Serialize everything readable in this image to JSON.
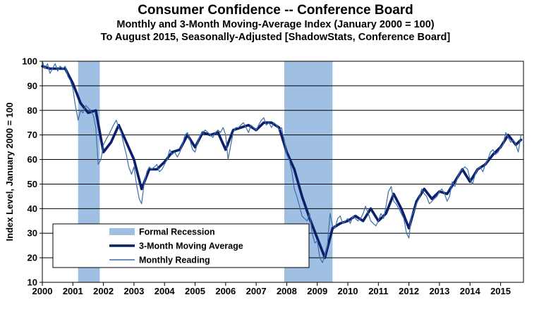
{
  "title": "Consumer Confidence -- Conference Board",
  "subtitle1": "Monthly and 3-Month Moving-Average Index (January 2000 = 100)",
  "subtitle2": "To August 2015, Seasonally-Adjusted [ShadowStats, Conference Board]",
  "chart_data": {
    "type": "line",
    "ylabel": "Index Level, January 2000 = 100",
    "xlabel": "",
    "ylim": [
      10,
      100
    ],
    "yticks": [
      10,
      20,
      30,
      40,
      50,
      60,
      70,
      80,
      90,
      100
    ],
    "xlim": [
      2000.0,
      2015.75
    ],
    "xticks": [
      "2000",
      "2001",
      "2002",
      "2003",
      "2004",
      "2005",
      "2006",
      "2007",
      "2008",
      "2009",
      "2010",
      "2011",
      "2012",
      "2013",
      "2014",
      "2015"
    ],
    "grid": "horizontal",
    "legend_position": "bottom-left",
    "colors": {
      "recession": "#9fbfe3",
      "ma": "#0b1f6b",
      "monthly": "#3d6da8"
    },
    "recessions": [
      {
        "start": 2001.17,
        "end": 2001.88
      },
      {
        "start": 2007.92,
        "end": 2009.5
      }
    ],
    "series": [
      {
        "name": "Formal Recession",
        "kind": "band"
      },
      {
        "name": "3-Month Moving Average",
        "points": [
          [
            2000.0,
            98
          ],
          [
            2000.25,
            97
          ],
          [
            2000.5,
            97
          ],
          [
            2000.75,
            97
          ],
          [
            2001.0,
            91
          ],
          [
            2001.25,
            83
          ],
          [
            2001.5,
            79
          ],
          [
            2001.75,
            80
          ],
          [
            2002.0,
            63
          ],
          [
            2002.25,
            67
          ],
          [
            2002.5,
            74
          ],
          [
            2002.75,
            67
          ],
          [
            2003.0,
            60
          ],
          [
            2003.25,
            48
          ],
          [
            2003.5,
            56
          ],
          [
            2003.75,
            56
          ],
          [
            2004.0,
            59
          ],
          [
            2004.25,
            63
          ],
          [
            2004.5,
            64
          ],
          [
            2004.75,
            70
          ],
          [
            2005.0,
            65
          ],
          [
            2005.25,
            71
          ],
          [
            2005.5,
            70
          ],
          [
            2005.75,
            71
          ],
          [
            2006.0,
            64
          ],
          [
            2006.25,
            72
          ],
          [
            2006.5,
            73
          ],
          [
            2006.75,
            74
          ],
          [
            2007.0,
            72
          ],
          [
            2007.25,
            75
          ],
          [
            2007.5,
            75
          ],
          [
            2007.75,
            73
          ],
          [
            2008.0,
            63
          ],
          [
            2008.25,
            56
          ],
          [
            2008.5,
            45
          ],
          [
            2008.75,
            36
          ],
          [
            2009.0,
            28
          ],
          [
            2009.25,
            20
          ],
          [
            2009.5,
            32
          ],
          [
            2009.75,
            34
          ],
          [
            2010.0,
            35
          ],
          [
            2010.25,
            37
          ],
          [
            2010.5,
            35
          ],
          [
            2010.75,
            40
          ],
          [
            2011.0,
            35
          ],
          [
            2011.25,
            38
          ],
          [
            2011.5,
            46
          ],
          [
            2011.75,
            40
          ],
          [
            2012.0,
            32
          ],
          [
            2012.25,
            43
          ],
          [
            2012.5,
            48
          ],
          [
            2012.75,
            44
          ],
          [
            2013.0,
            47
          ],
          [
            2013.25,
            46
          ],
          [
            2013.5,
            51
          ],
          [
            2013.75,
            56
          ],
          [
            2014.0,
            51
          ],
          [
            2014.25,
            56
          ],
          [
            2014.5,
            58
          ],
          [
            2014.75,
            62
          ],
          [
            2015.0,
            65
          ],
          [
            2015.25,
            70
          ],
          [
            2015.5,
            66
          ],
          [
            2015.67,
            68
          ]
        ]
      },
      {
        "name": "Monthly Reading",
        "points": [
          [
            2000.0,
            100
          ],
          [
            2000.08,
            97
          ],
          [
            2000.17,
            99
          ],
          [
            2000.25,
            95
          ],
          [
            2000.33,
            97
          ],
          [
            2000.42,
            99
          ],
          [
            2000.5,
            96
          ],
          [
            2000.58,
            98
          ],
          [
            2000.67,
            97
          ],
          [
            2000.75,
            98
          ],
          [
            2000.83,
            94
          ],
          [
            2000.92,
            92
          ],
          [
            2001.0,
            89
          ],
          [
            2001.08,
            82
          ],
          [
            2001.17,
            76
          ],
          [
            2001.25,
            80
          ],
          [
            2001.33,
            79
          ],
          [
            2001.42,
            82
          ],
          [
            2001.5,
            81
          ],
          [
            2001.58,
            80
          ],
          [
            2001.67,
            78
          ],
          [
            2001.75,
            73
          ],
          [
            2001.83,
            58
          ],
          [
            2001.92,
            60
          ],
          [
            2002.0,
            66
          ],
          [
            2002.08,
            68
          ],
          [
            2002.17,
            70
          ],
          [
            2002.25,
            72
          ],
          [
            2002.33,
            74
          ],
          [
            2002.42,
            76
          ],
          [
            2002.5,
            73
          ],
          [
            2002.58,
            71
          ],
          [
            2002.67,
            66
          ],
          [
            2002.75,
            62
          ],
          [
            2002.83,
            57
          ],
          [
            2002.92,
            54
          ],
          [
            2003.0,
            57
          ],
          [
            2003.08,
            50
          ],
          [
            2003.17,
            44
          ],
          [
            2003.25,
            42
          ],
          [
            2003.33,
            50
          ],
          [
            2003.42,
            55
          ],
          [
            2003.5,
            57
          ],
          [
            2003.58,
            56
          ],
          [
            2003.67,
            57
          ],
          [
            2003.75,
            58
          ],
          [
            2003.83,
            55
          ],
          [
            2003.92,
            56
          ],
          [
            2004.0,
            58
          ],
          [
            2004.08,
            60
          ],
          [
            2004.17,
            64
          ],
          [
            2004.25,
            62
          ],
          [
            2004.33,
            63
          ],
          [
            2004.42,
            61
          ],
          [
            2004.5,
            63
          ],
          [
            2004.58,
            66
          ],
          [
            2004.67,
            70
          ],
          [
            2004.75,
            71
          ],
          [
            2004.83,
            68
          ],
          [
            2004.92,
            64
          ],
          [
            2005.0,
            63
          ],
          [
            2005.08,
            67
          ],
          [
            2005.17,
            70
          ],
          [
            2005.25,
            71
          ],
          [
            2005.33,
            72
          ],
          [
            2005.42,
            71
          ],
          [
            2005.5,
            70
          ],
          [
            2005.58,
            69
          ],
          [
            2005.67,
            71
          ],
          [
            2005.75,
            72
          ],
          [
            2005.83,
            71
          ],
          [
            2005.92,
            73
          ],
          [
            2006.0,
            70
          ],
          [
            2006.08,
            60
          ],
          [
            2006.17,
            66
          ],
          [
            2006.25,
            71
          ],
          [
            2006.33,
            73
          ],
          [
            2006.42,
            73
          ],
          [
            2006.5,
            74
          ],
          [
            2006.58,
            75
          ],
          [
            2006.67,
            73
          ],
          [
            2006.75,
            71
          ],
          [
            2006.83,
            74
          ],
          [
            2006.92,
            73
          ],
          [
            2007.0,
            72
          ],
          [
            2007.08,
            74
          ],
          [
            2007.17,
            76
          ],
          [
            2007.25,
            77
          ],
          [
            2007.33,
            74
          ],
          [
            2007.42,
            75
          ],
          [
            2007.5,
            73
          ],
          [
            2007.58,
            75
          ],
          [
            2007.67,
            74
          ],
          [
            2007.75,
            72
          ],
          [
            2007.83,
            73
          ],
          [
            2007.92,
            68
          ],
          [
            2008.0,
            62
          ],
          [
            2008.08,
            60
          ],
          [
            2008.17,
            55
          ],
          [
            2008.25,
            48
          ],
          [
            2008.33,
            45
          ],
          [
            2008.42,
            41
          ],
          [
            2008.5,
            37
          ],
          [
            2008.58,
            36
          ],
          [
            2008.67,
            35
          ],
          [
            2008.75,
            38
          ],
          [
            2008.83,
            30
          ],
          [
            2008.92,
            26
          ],
          [
            2009.0,
            27
          ],
          [
            2009.08,
            20
          ],
          [
            2009.17,
            18
          ],
          [
            2009.25,
            21
          ],
          [
            2009.33,
            25
          ],
          [
            2009.42,
            38
          ],
          [
            2009.5,
            33
          ],
          [
            2009.58,
            32
          ],
          [
            2009.67,
            36
          ],
          [
            2009.75,
            37
          ],
          [
            2009.83,
            34
          ],
          [
            2009.92,
            35
          ],
          [
            2010.0,
            36
          ],
          [
            2010.08,
            34
          ],
          [
            2010.17,
            37
          ],
          [
            2010.25,
            36
          ],
          [
            2010.33,
            35
          ],
          [
            2010.42,
            36
          ],
          [
            2010.5,
            38
          ],
          [
            2010.58,
            41
          ],
          [
            2010.67,
            38
          ],
          [
            2010.75,
            35
          ],
          [
            2010.83,
            34
          ],
          [
            2010.92,
            33
          ],
          [
            2011.0,
            35
          ],
          [
            2011.08,
            38
          ],
          [
            2011.17,
            36
          ],
          [
            2011.25,
            41
          ],
          [
            2011.33,
            47
          ],
          [
            2011.42,
            49
          ],
          [
            2011.5,
            43
          ],
          [
            2011.58,
            42
          ],
          [
            2011.67,
            40
          ],
          [
            2011.75,
            38
          ],
          [
            2011.83,
            36
          ],
          [
            2011.92,
            30
          ],
          [
            2012.0,
            28
          ],
          [
            2012.08,
            37
          ],
          [
            2012.17,
            39
          ],
          [
            2012.25,
            42
          ],
          [
            2012.33,
            44
          ],
          [
            2012.42,
            48
          ],
          [
            2012.5,
            46
          ],
          [
            2012.58,
            45
          ],
          [
            2012.67,
            42
          ],
          [
            2012.75,
            43
          ],
          [
            2012.83,
            44
          ],
          [
            2012.92,
            45
          ],
          [
            2013.0,
            47
          ],
          [
            2013.08,
            48
          ],
          [
            2013.17,
            46
          ],
          [
            2013.25,
            43
          ],
          [
            2013.33,
            45
          ],
          [
            2013.42,
            51
          ],
          [
            2013.5,
            49
          ],
          [
            2013.58,
            52
          ],
          [
            2013.67,
            55
          ],
          [
            2013.75,
            56
          ],
          [
            2013.83,
            57
          ],
          [
            2013.92,
            56
          ],
          [
            2014.0,
            52
          ],
          [
            2014.08,
            50
          ],
          [
            2014.17,
            54
          ],
          [
            2014.25,
            56
          ],
          [
            2014.33,
            57
          ],
          [
            2014.42,
            55
          ],
          [
            2014.5,
            58
          ],
          [
            2014.58,
            60
          ],
          [
            2014.67,
            63
          ],
          [
            2014.75,
            64
          ],
          [
            2014.83,
            62
          ],
          [
            2014.92,
            63
          ],
          [
            2015.0,
            65
          ],
          [
            2015.08,
            66
          ],
          [
            2015.17,
            71
          ],
          [
            2015.25,
            69
          ],
          [
            2015.33,
            67
          ],
          [
            2015.42,
            68
          ],
          [
            2015.5,
            66
          ],
          [
            2015.58,
            63
          ],
          [
            2015.67,
            70
          ]
        ]
      }
    ]
  }
}
